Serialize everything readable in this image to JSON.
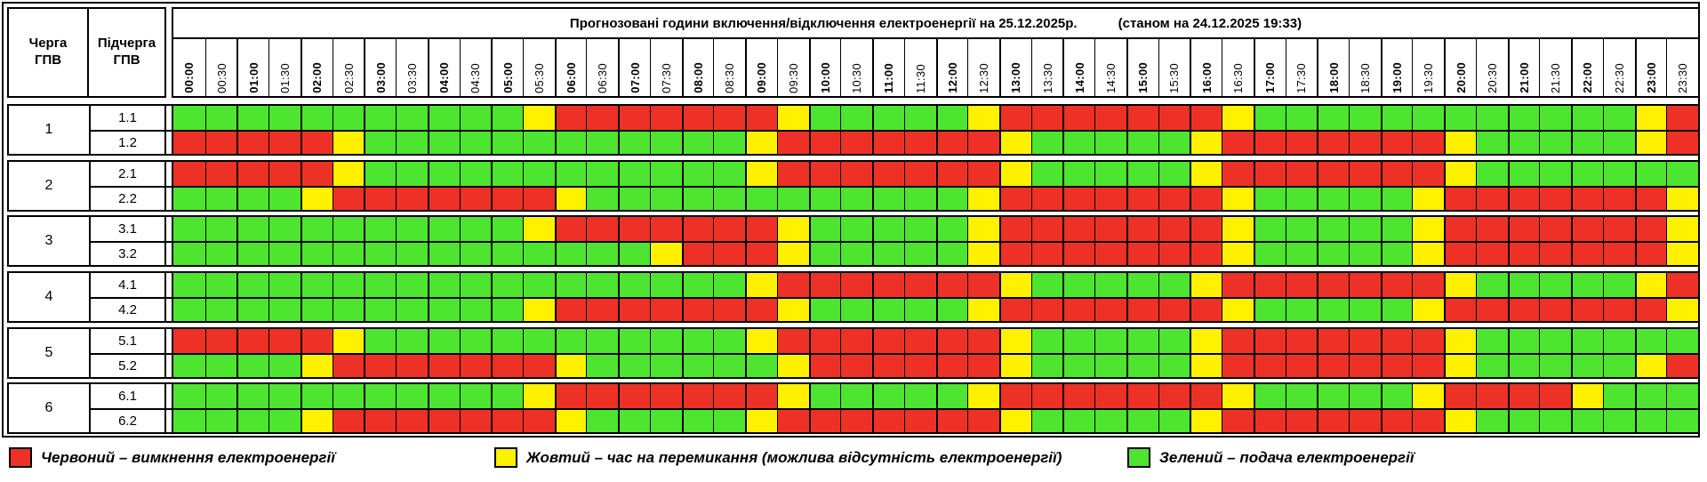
{
  "title": {
    "main": "Прогнозовані години включення/відключення електроенергії на 25.12.2025р.",
    "status": "(станом на 24.12.2025 19:33)"
  },
  "headers": {
    "queue": "Черга ГПВ",
    "subqueue": "Підчерга ГПВ"
  },
  "time_slots": [
    "00:00",
    "00:30",
    "01:00",
    "01:30",
    "02:00",
    "02:30",
    "03:00",
    "03:30",
    "04:00",
    "04:30",
    "05:00",
    "05:30",
    "06:00",
    "06:30",
    "07:00",
    "07:30",
    "08:00",
    "08:30",
    "09:00",
    "09:30",
    "10:00",
    "10:30",
    "11:00",
    "11:30",
    "12:00",
    "12:30",
    "13:00",
    "13:30",
    "14:00",
    "14:30",
    "15:00",
    "15:30",
    "16:00",
    "16:30",
    "17:00",
    "17:30",
    "18:00",
    "18:30",
    "19:00",
    "19:30",
    "20:00",
    "20:30",
    "21:00",
    "21:30",
    "22:00",
    "22:30",
    "23:00",
    "23:30"
  ],
  "colors": {
    "red": "#ED3126",
    "yellow": "#FFF100",
    "green": "#4DE52F",
    "border": "#000000"
  },
  "queues": [
    {
      "label": "1",
      "rows": [
        {
          "label": "1.1",
          "cells": "GGGGGGGGGGGYRRRRRRRYGGGGGYRRRRRRRYGGGGGGGGGGGGYR"
        },
        {
          "label": "1.2",
          "cells": "RRRRRYGGGGGGGGGGGGYRRRRRRRYGGGGGYRRRRRRRYGGGGGYR"
        }
      ]
    },
    {
      "label": "2",
      "rows": [
        {
          "label": "2.1",
          "cells": "RRRRRYGGGGGGGGGGGGYRRRRRRRYGGGGGYRRRRRRRYGGGGGGG"
        },
        {
          "label": "2.2",
          "cells": "GGGGYRRRRRRRYGGGGGGGGGGGGYRRRRRRRYGGGGGYRRRRRRRY"
        }
      ]
    },
    {
      "label": "3",
      "rows": [
        {
          "label": "3.1",
          "cells": "GGGGGGGGGGGYRRRRRRRYGGGGGYRRRRRRRYGGGGGYRRRRRRRY"
        },
        {
          "label": "3.2",
          "cells": "GGGGGGGGGGGGGGGYRRRYGGGGGYRRRRRRRYGGGGGYRRRRRRRY"
        }
      ]
    },
    {
      "label": "4",
      "rows": [
        {
          "label": "4.1",
          "cells": "GGGGGGGGGGGGGGGGGGYRRRRRRRYGGGGGYRRRRRRRYGGGGGYR"
        },
        {
          "label": "4.2",
          "cells": "GGGGGGGGGGGYRRRRRRRYGGGGGYRRRRRRRYGGGGGYRRRRRRRY"
        }
      ]
    },
    {
      "label": "5",
      "rows": [
        {
          "label": "5.1",
          "cells": "RRRRRYGGGGGGGGGGGGYRRRRRRRYGGGGGYRRRRRRRYGGGGGGG"
        },
        {
          "label": "5.2",
          "cells": "GGGGYRRRRRRRYGGGGGGYRRRRRRYGGGGGYRRRRRRRYGGGGGYR"
        }
      ]
    },
    {
      "label": "6",
      "rows": [
        {
          "label": "6.1",
          "cells": "GGGGGGGGGGGYRRRRRRRYGGGGGYRRRRRRRYGGGGGYRRRRYGGG"
        },
        {
          "label": "6.2",
          "cells": "GGGGYRRRRRRRYGGGGGYRRRRRRRYGGGGGYRRRRRRRYGGGGGGG"
        }
      ]
    }
  ],
  "legend": [
    {
      "color_key": "red",
      "label": "Червоний – вимкнення електроенергії"
    },
    {
      "color_key": "yellow",
      "label": "Жовтий – час на перемикання (можлива відсутність електроенергії)"
    },
    {
      "color_key": "green",
      "label": "Зелений – подача електроенергії"
    }
  ],
  "chart_data": {
    "type": "heatmap",
    "title": "Прогнозовані години включення/відключення електроенергії на 25.12.2025р.",
    "subtitle": "(станом на 24.12.2025 19:33)",
    "x_categories": [
      "00:00",
      "00:30",
      "01:00",
      "01:30",
      "02:00",
      "02:30",
      "03:00",
      "03:30",
      "04:00",
      "04:30",
      "05:00",
      "05:30",
      "06:00",
      "06:30",
      "07:00",
      "07:30",
      "08:00",
      "08:30",
      "09:00",
      "09:30",
      "10:00",
      "10:30",
      "11:00",
      "11:30",
      "12:00",
      "12:30",
      "13:00",
      "13:30",
      "14:00",
      "14:30",
      "15:00",
      "15:30",
      "16:00",
      "16:30",
      "17:00",
      "17:30",
      "18:00",
      "18:30",
      "19:00",
      "19:30",
      "20:00",
      "20:30",
      "21:00",
      "21:30",
      "22:00",
      "22:30",
      "23:00",
      "23:30"
    ],
    "y_categories": [
      "1.1",
      "1.2",
      "2.1",
      "2.2",
      "3.1",
      "3.2",
      "4.1",
      "4.2",
      "5.1",
      "5.2",
      "6.1",
      "6.2"
    ],
    "cell_states": {
      "1.1": "GGGGGGGGGGGYRRRRRRRYGGGGGYRRRRRRRYGGGGGGGGGGGGYR",
      "1.2": "RRRRRYGGGGGGGGGGGGYRRRRRRRYGGGGGYRRRRRRRYGGGGGYR",
      "2.1": "RRRRRYGGGGGGGGGGGGYRRRRRRRYGGGGGYRRRRRRRYGGGGGGG",
      "2.2": "GGGGYRRRRRRRYGGGGGGGGGGGGYRRRRRRRYGGGGGYRRRRRRRY",
      "3.1": "GGGGGGGGGGGYRRRRRRRYGGGGGYRRRRRRRYGGGGGYRRRRRRRY",
      "3.2": "GGGGGGGGGGGGGGGYRRRYGGGGGYRRRRRRRYGGGGGYRRRRRRRY",
      "4.1": "GGGGGGGGGGGGGGGGGGYRRRRRRRYGGGGGYRRRRRRRYGGGGGYR",
      "4.2": "GGGGGGGGGGGYRRRRRRRYGGGGGYRRRRRRRYGGGGGYRRRRRRRY",
      "5.1": "RRRRRYGGGGGGGGGGGGYRRRRRRRYGGGGGYRRRRRRRYGGGGGGG",
      "5.2": "GGGGYRRRRRRRYGGGGGGYRRRRRRYGGGGGYRRRRRRRYGGGGGYR",
      "6.1": "GGGGGGGGGGGYRRRRRRRYGGGGGYRRRRRRRYGGGGGYRRRRYGGG",
      "6.2": "GGGGYRRRRRRRYGGGGGYRRRRRRRYGGGGGYRRRRRRRYGGGGGGG"
    },
    "state_legend": {
      "R": "Червоний – вимкнення електроенергії",
      "Y": "Жовтий – час на перемикання (можлива відсутність електроенергії)",
      "G": "Зелений – подача електроенергії"
    },
    "legend_position": "bottom",
    "grid": true
  }
}
